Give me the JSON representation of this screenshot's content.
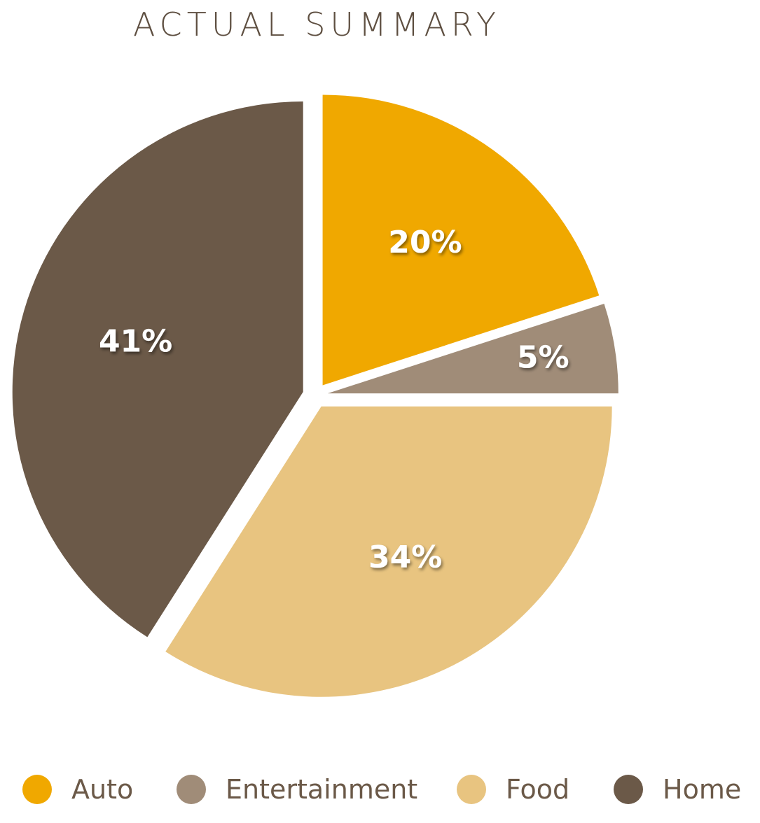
{
  "chart_data": {
    "type": "pie",
    "title": "ACTUAL SUMMARY",
    "categories": [
      "Auto",
      "Entertainment",
      "Food",
      "Home"
    ],
    "values": [
      20,
      5,
      34,
      41
    ],
    "labels": [
      "20%",
      "5%",
      "34%",
      "41%"
    ],
    "colors": [
      "#F0A800",
      "#A08C78",
      "#E8C480",
      "#6B5948"
    ],
    "start_angle": "top, clockwise",
    "exploded": true,
    "legend": "bottom"
  }
}
